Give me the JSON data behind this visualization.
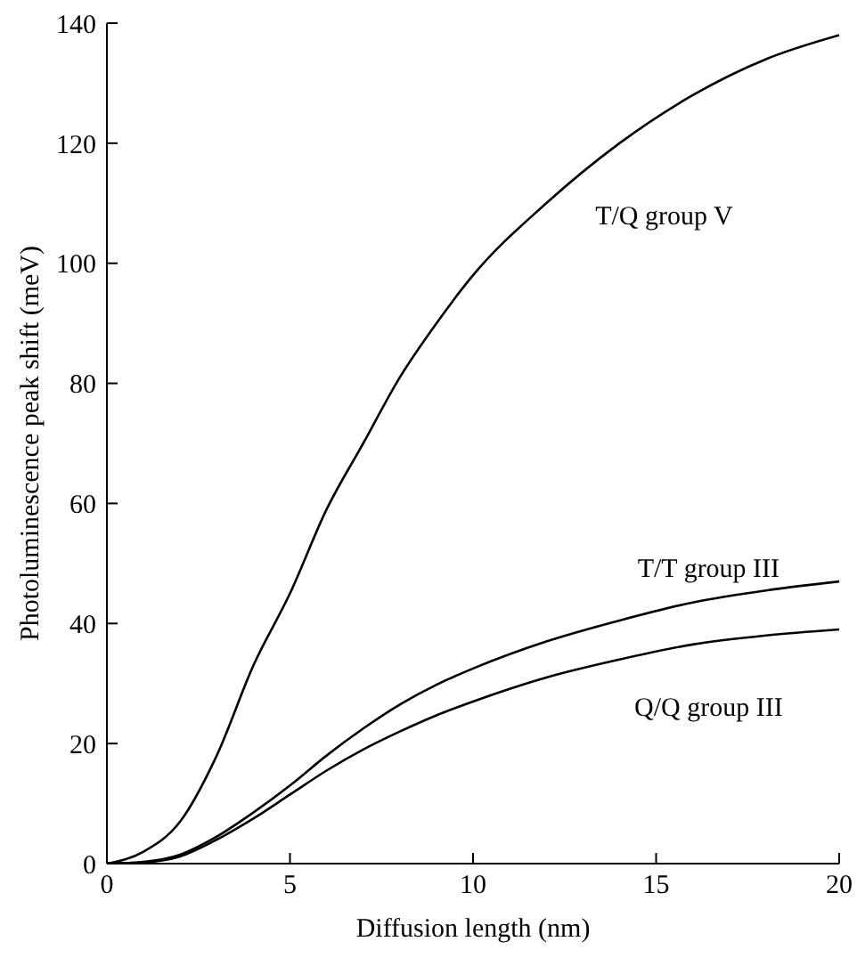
{
  "chart_data": {
    "type": "line",
    "xlabel": "Diffusion length (nm)",
    "ylabel": "Photoluminescence peak shift (meV)",
    "x": [
      0,
      1,
      2,
      3,
      4,
      5,
      6,
      7,
      8,
      9,
      10,
      12,
      14,
      16,
      18,
      20
    ],
    "series": [
      {
        "name": "T/Q group V",
        "color": "#000000",
        "values": [
          0,
          2,
          7,
          18,
          33,
          45,
          59,
          70,
          81,
          90,
          98,
          110,
          120,
          128,
          134,
          138
        ]
      },
      {
        "name": "T/T group III",
        "color": "#000000",
        "values": [
          0,
          0.3,
          1.5,
          4.5,
          8.5,
          13,
          18,
          22.5,
          26.5,
          29.8,
          32.5,
          37,
          40.5,
          43.5,
          45.5,
          47
        ]
      },
      {
        "name": "Q/Q group III",
        "color": "#000000",
        "values": [
          0,
          0.2,
          1.2,
          4,
          7.5,
          11.5,
          15.5,
          19,
          22,
          24.7,
          27,
          31,
          34,
          36.5,
          38,
          39
        ]
      }
    ],
    "xlim": [
      0,
      20
    ],
    "xticks": [
      0,
      5,
      10,
      15,
      20
    ],
    "ylim": [
      0,
      140
    ],
    "yticks": [
      0,
      20,
      40,
      60,
      80,
      100,
      120,
      140
    ],
    "grid": false,
    "legend": false,
    "marker": "none",
    "line_style": "solid"
  }
}
